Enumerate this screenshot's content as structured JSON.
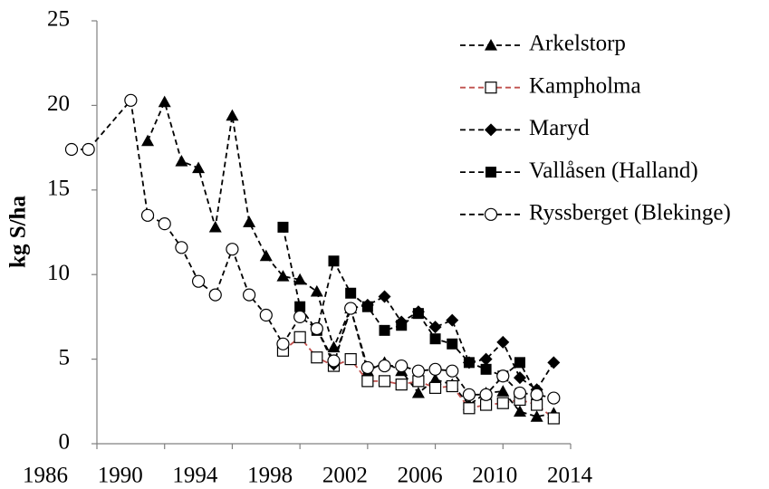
{
  "chart_data": {
    "type": "line",
    "y_label": "kg S/ha",
    "xlim": [
      1986,
      2014
    ],
    "xticks": [
      1986,
      1990,
      1994,
      1998,
      2002,
      2006,
      2010,
      2014
    ],
    "ylim": [
      0,
      25
    ],
    "yticks": [
      0,
      5,
      10,
      15,
      20,
      25
    ],
    "grid": false,
    "legend": "upper right",
    "series": [
      {
        "name": "Arkelstorp",
        "color": "#000000",
        "marker": "triangle",
        "x": [
          1989,
          1990,
          1991,
          1992,
          1993,
          1994,
          1995,
          1996,
          1997,
          1998,
          1999,
          2000,
          2001,
          2002,
          2003,
          2004,
          2005,
          2006,
          2007,
          2008,
          2009,
          2010,
          2011,
          2012,
          2013
        ],
        "values": [
          17.9,
          20.2,
          16.7,
          16.3,
          12.8,
          19.4,
          13.1,
          11.1,
          9.9,
          9.7,
          9.0,
          5.7,
          8.0,
          4.3,
          4.8,
          4.3,
          3.0,
          3.8,
          3.5,
          2.3,
          3.0,
          3.1,
          1.9,
          1.6,
          1.8
        ]
      },
      {
        "name": "Kampholma",
        "color": "#c0504d",
        "marker": "open-square",
        "x": [
          1997,
          1998,
          1999,
          2000,
          2001,
          2002,
          2003,
          2004,
          2005,
          2006,
          2007,
          2008,
          2009,
          2010,
          2011,
          2012,
          2013
        ],
        "values": [
          5.5,
          6.3,
          5.1,
          4.6,
          5.0,
          3.7,
          3.7,
          3.5,
          3.7,
          3.3,
          3.4,
          2.1,
          2.3,
          2.4,
          2.6,
          2.3,
          1.5
        ]
      },
      {
        "name": "Maryd",
        "color": "#000000",
        "marker": "diamond",
        "x": [
          1999,
          2000,
          2001,
          2002,
          2003,
          2004,
          2005,
          2006,
          2007,
          2008,
          2009,
          2010,
          2011,
          2012,
          2013
        ],
        "values": [
          6.8,
          4.7,
          8.0,
          8.2,
          8.7,
          7.2,
          7.8,
          6.9,
          7.3,
          4.8,
          5.0,
          6.0,
          3.9,
          3.2,
          4.8
        ]
      },
      {
        "name": "Vallåsen (Halland)",
        "color": "#000000",
        "marker": "square",
        "x": [
          1997,
          1998,
          1999,
          2000,
          2001,
          2002,
          2003,
          2004,
          2005,
          2006,
          2007,
          2008,
          2009,
          2010,
          2011,
          2012
        ],
        "values": [
          12.8,
          8.1,
          6.7,
          10.8,
          8.9,
          8.1,
          6.7,
          7.0,
          7.7,
          6.2,
          5.9,
          4.8,
          4.4,
          4.0,
          4.8,
          2.9
        ]
      },
      {
        "name": "Ryssberget (Blekinge)",
        "color": "#000000",
        "marker": "open-circle",
        "x": [
          1984.5,
          1985.5,
          1988,
          1989,
          1990,
          1991,
          1992,
          1993,
          1994,
          1995,
          1996,
          1997,
          1998,
          1999,
          2000,
          2001,
          2002,
          2003,
          2004,
          2005,
          2006,
          2007,
          2008,
          2009,
          2010,
          2011,
          2012,
          2013
        ],
        "values": [
          17.4,
          17.4,
          20.3,
          13.5,
          13.0,
          11.6,
          9.6,
          8.8,
          11.5,
          8.8,
          7.6,
          5.9,
          7.5,
          6.8,
          4.9,
          8.0,
          4.5,
          4.6,
          4.6,
          4.3,
          4.4,
          4.3,
          2.9,
          2.9,
          4.0,
          3.0,
          2.9,
          2.7
        ]
      }
    ]
  }
}
